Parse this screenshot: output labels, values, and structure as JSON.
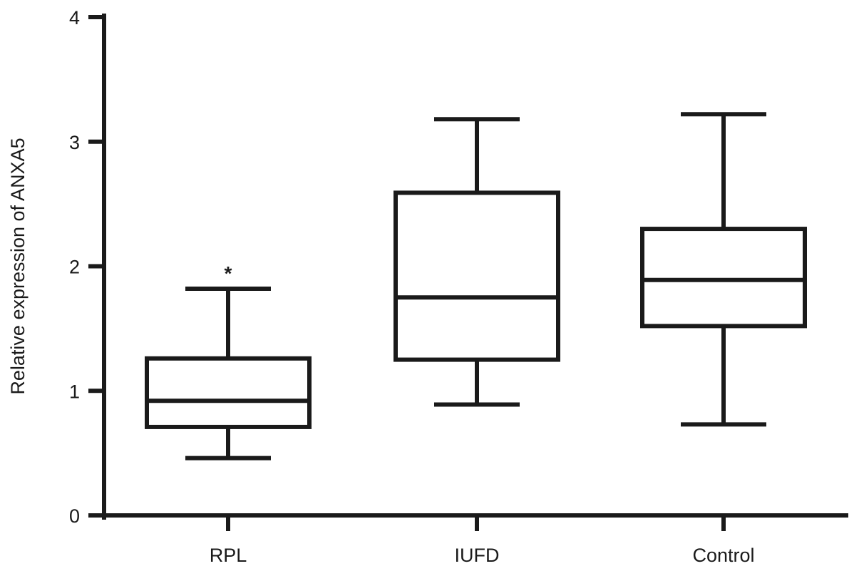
{
  "chart_data": {
    "type": "box",
    "ylabel": "Relative expression of ANXA5",
    "xlabel": "",
    "ylim": [
      0,
      4
    ],
    "yticks": [
      "0",
      "1",
      "2",
      "3",
      "4"
    ],
    "grid": false,
    "categories": [
      "RPL",
      "IUFD",
      "Control"
    ],
    "boxes": [
      {
        "category": "RPL",
        "whisker_low": 0.46,
        "q1": 0.71,
        "median": 0.92,
        "q3": 1.26,
        "whisker_high": 1.82,
        "annotation": "*"
      },
      {
        "category": "IUFD",
        "whisker_low": 0.89,
        "q1": 1.25,
        "median": 1.75,
        "q3": 2.59,
        "whisker_high": 3.18
      },
      {
        "category": "Control",
        "whisker_low": 0.73,
        "q1": 1.52,
        "median": 1.89,
        "q3": 2.3,
        "whisker_high": 3.22
      }
    ],
    "colors": {
      "stroke": "#1a1a1a",
      "background": "#ffffff"
    }
  }
}
